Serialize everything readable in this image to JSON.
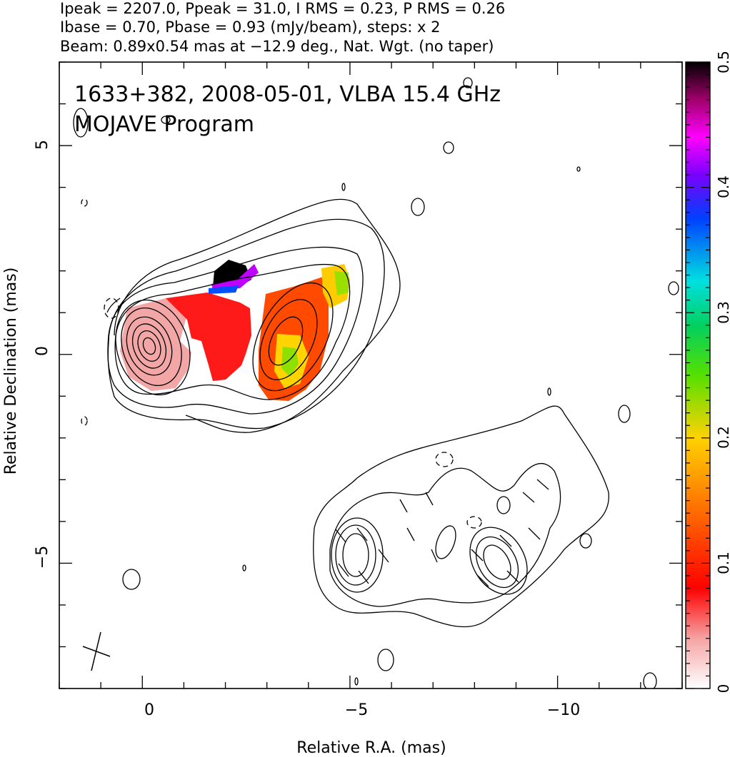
{
  "header": {
    "line1": "Ipeak = 2207.0, Ppeak = 31.0, I RMS = 0.23, P RMS = 0.26",
    "line2": "Ibase = 0.70, Pbase = 0.93 (mJy/beam), steps: x 2",
    "line3": "Beam: 0.89x0.54 mas at −12.9 deg., Nat. Wgt. (no taper)"
  },
  "plot": {
    "title_line1": "1633+382, 2008-05-01, VLBA 15.4 GHz",
    "title_line2": "MOJAVE Program"
  },
  "chart_data": {
    "type": "heatmap",
    "title": "1633+382, 2008-05-01, VLBA 15.4 GHz",
    "subtitle": "MOJAVE Program",
    "xlabel": "Relative R.A. (mas)",
    "ylabel": "Relative Declination (mas)",
    "xlim": [
      2.0,
      -13.0
    ],
    "ylim": [
      -8.0,
      7.0
    ],
    "xticks": [
      0,
      -5,
      -10
    ],
    "xtick_labels": [
      "0",
      "−5",
      "−10"
    ],
    "yticks": [
      5,
      0,
      -5
    ],
    "ytick_labels": [
      "5",
      "0",
      "−5"
    ],
    "colorbar": {
      "range": [
        0,
        0.5
      ],
      "ticks": [
        0,
        0.1,
        0.2,
        0.3,
        0.4,
        0.5
      ],
      "tick_labels": [
        "0",
        "0.1",
        "0.2",
        "0.3",
        "0.4",
        "0.5"
      ]
    },
    "beam": {
      "major_mas": 0.89,
      "minor_mas": 0.54,
      "pa_deg": -12.9
    }
  }
}
